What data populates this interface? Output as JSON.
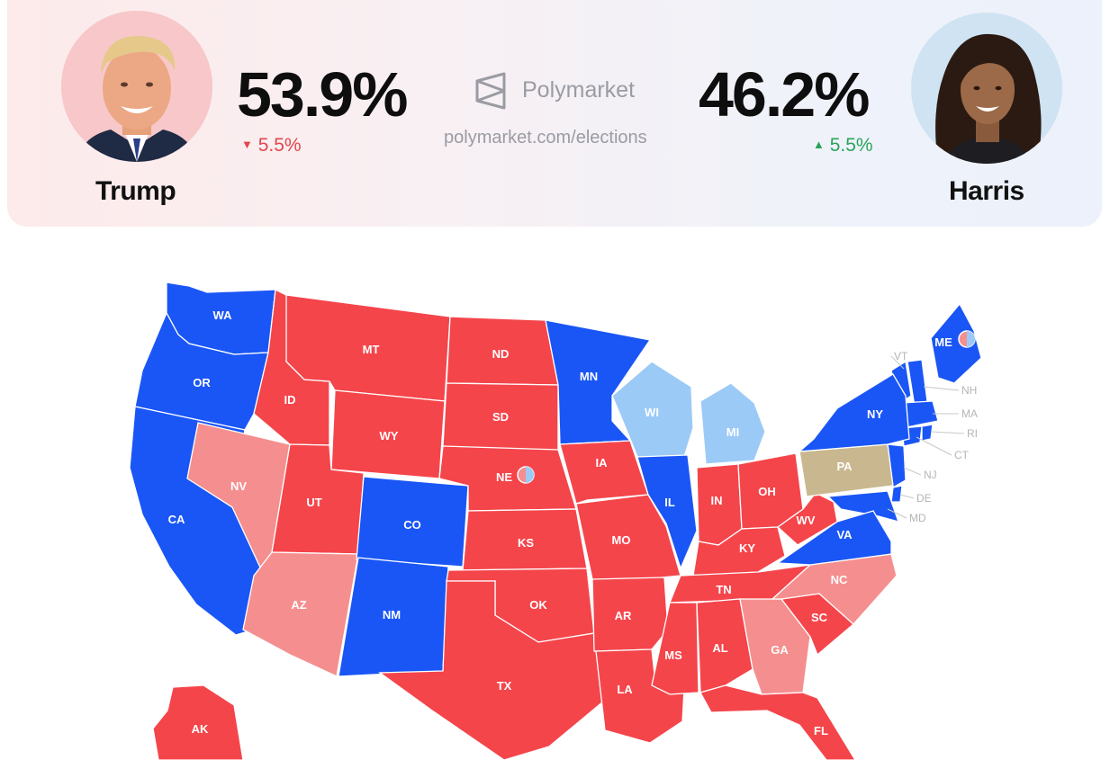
{
  "header": {
    "brand": "Polymarket",
    "url": "polymarket.com/elections"
  },
  "candidates": [
    {
      "name": "Trump",
      "pct": "53.9%",
      "change": "5.5%",
      "direction": "down",
      "color": "#e0474c"
    },
    {
      "name": "Harris",
      "pct": "46.2%",
      "change": "5.5%",
      "direction": "up",
      "color": "#27a55b"
    }
  ],
  "colors": {
    "solid_blue": "#1a56f5",
    "light_blue": "#9ccaf7",
    "solid_red": "#f4454b",
    "light_red": "#f58f8f",
    "tossup": "#c9b88f"
  },
  "map": {
    "states": [
      {
        "abbr": "WA",
        "category": "solid_blue"
      },
      {
        "abbr": "OR",
        "category": "solid_blue"
      },
      {
        "abbr": "CA",
        "category": "solid_blue"
      },
      {
        "abbr": "NV",
        "category": "light_red"
      },
      {
        "abbr": "ID",
        "category": "solid_red"
      },
      {
        "abbr": "MT",
        "category": "solid_red"
      },
      {
        "abbr": "WY",
        "category": "solid_red"
      },
      {
        "abbr": "UT",
        "category": "solid_red"
      },
      {
        "abbr": "AZ",
        "category": "light_red"
      },
      {
        "abbr": "CO",
        "category": "solid_blue"
      },
      {
        "abbr": "NM",
        "category": "solid_blue"
      },
      {
        "abbr": "ND",
        "category": "solid_red"
      },
      {
        "abbr": "SD",
        "category": "solid_red"
      },
      {
        "abbr": "NE",
        "category": "solid_red"
      },
      {
        "abbr": "KS",
        "category": "solid_red"
      },
      {
        "abbr": "OK",
        "category": "solid_red"
      },
      {
        "abbr": "TX",
        "category": "solid_red"
      },
      {
        "abbr": "MN",
        "category": "solid_blue"
      },
      {
        "abbr": "IA",
        "category": "solid_red"
      },
      {
        "abbr": "MO",
        "category": "solid_red"
      },
      {
        "abbr": "AR",
        "category": "solid_red"
      },
      {
        "abbr": "LA",
        "category": "solid_red"
      },
      {
        "abbr": "WI",
        "category": "light_blue"
      },
      {
        "abbr": "IL",
        "category": "solid_blue"
      },
      {
        "abbr": "MI",
        "category": "light_blue"
      },
      {
        "abbr": "IN",
        "category": "solid_red"
      },
      {
        "abbr": "OH",
        "category": "solid_red"
      },
      {
        "abbr": "KY",
        "category": "solid_red"
      },
      {
        "abbr": "TN",
        "category": "solid_red"
      },
      {
        "abbr": "MS",
        "category": "solid_red"
      },
      {
        "abbr": "AL",
        "category": "solid_red"
      },
      {
        "abbr": "GA",
        "category": "light_red"
      },
      {
        "abbr": "FL",
        "category": "solid_red"
      },
      {
        "abbr": "SC",
        "category": "solid_red"
      },
      {
        "abbr": "NC",
        "category": "light_red"
      },
      {
        "abbr": "VA",
        "category": "solid_blue"
      },
      {
        "abbr": "WV",
        "category": "solid_red"
      },
      {
        "abbr": "PA",
        "category": "tossup"
      },
      {
        "abbr": "NY",
        "category": "solid_blue"
      },
      {
        "abbr": "ME",
        "category": "solid_blue"
      },
      {
        "abbr": "AK",
        "category": "solid_red"
      }
    ],
    "small_states": [
      "VT",
      "NH",
      "MA",
      "RI",
      "CT",
      "NJ",
      "DE",
      "MD"
    ]
  }
}
